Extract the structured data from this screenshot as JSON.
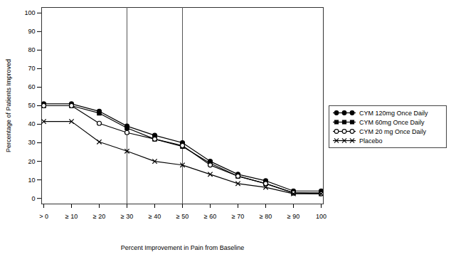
{
  "chart_data": {
    "type": "line",
    "x_label": "Percent Improvement in Pain from Baseline",
    "y_label": "Percentage of Patients Improved",
    "categories": [
      "> 0",
      "≥ 10",
      "≥ 20",
      "≥ 30",
      "≥ 40",
      "≥ 50",
      "≥ 60",
      "≥ 70",
      "≥ 80",
      "≥ 90",
      "100"
    ],
    "series": [
      {
        "name": "CYM 120mg Once Daily",
        "color": "#000000",
        "marker": "circle",
        "line_style": "solid",
        "values": [
          51,
          51,
          47,
          39,
          34,
          30,
          20,
          13,
          9.5,
          4,
          4
        ]
      },
      {
        "name": "CYM 60mg Once Daily",
        "color": "#000000",
        "marker": "square",
        "line_style": "solid",
        "values": [
          50,
          50,
          46,
          38,
          32,
          28,
          19,
          12,
          8,
          3,
          3
        ]
      },
      {
        "name": "CYM 20 mg Once Daily",
        "color": "#000000",
        "marker": "circle-open",
        "line_style": "solid",
        "values": [
          50,
          50,
          40.5,
          35.5,
          32,
          28.5,
          18,
          12,
          8,
          3,
          2.5
        ]
      },
      {
        "name": "Placebo",
        "color": "#000000",
        "marker": "x",
        "line_style": "solid",
        "values": [
          41.5,
          41.5,
          30.5,
          25.5,
          20,
          18,
          13,
          8,
          6,
          2.5,
          2.5
        ]
      }
    ],
    "reference_lines": [
      "≥ 30",
      "≥ 50"
    ],
    "ylim": [
      -3,
      103
    ],
    "yticks": [
      0,
      10,
      20,
      30,
      40,
      50,
      60,
      70,
      80,
      90,
      100
    ],
    "grid": false,
    "legend": "right"
  }
}
